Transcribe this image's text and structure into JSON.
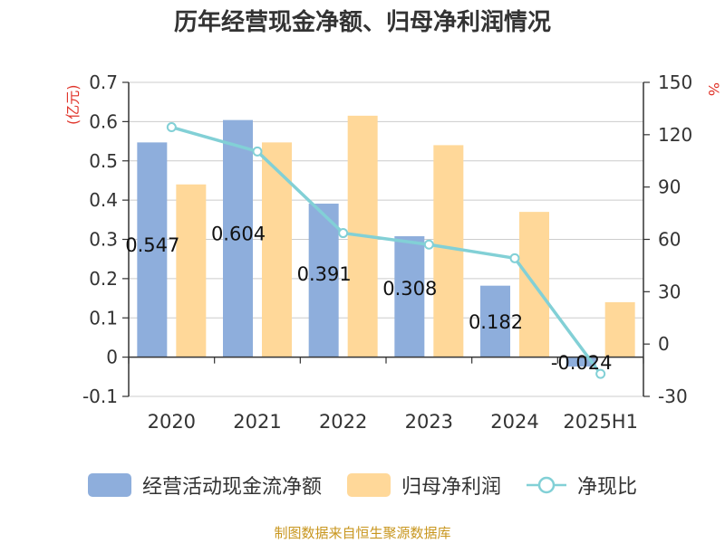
{
  "title": "历年经营现金净额、归母净利润情况",
  "source_note": "制图数据来自恒生聚源数据库",
  "colors": {
    "cash_flow": "#8eaedc",
    "net_profit": "#ffd899",
    "ratio": "#82d0d6",
    "unit_red": "#e0352b",
    "text": "#333333",
    "grid": "#cccccc",
    "source": "#c8961e"
  },
  "chart_data": {
    "type": "bar",
    "title": "历年经营现金净额、归母净利润情况",
    "categories": [
      "2020",
      "2021",
      "2022",
      "2023",
      "2024",
      "2025H1"
    ],
    "y_left": {
      "unit": "(亿元)",
      "min": -0.1,
      "max": 0.7,
      "ticks": [
        "0.7",
        "0.6",
        "0.5",
        "0.4",
        "0.3",
        "0.2",
        "0.1",
        "0",
        "-0.1"
      ]
    },
    "y_right": {
      "unit": "%",
      "min": -30,
      "max": 150,
      "ticks": [
        "150",
        "120",
        "90",
        "60",
        "30",
        "0",
        "-30"
      ]
    },
    "grid": true,
    "legend_position": "bottom",
    "series": [
      {
        "name": "经营活动现金流净额",
        "type": "bar",
        "axis": "left",
        "values": [
          0.547,
          0.604,
          0.391,
          0.308,
          0.182,
          -0.024
        ],
        "labels": [
          "0.547",
          "0.604",
          "0.391",
          "0.308",
          "0.182",
          "-0.024"
        ]
      },
      {
        "name": "归母净利润",
        "type": "bar",
        "axis": "left",
        "values": [
          0.44,
          0.547,
          0.615,
          0.54,
          0.37,
          0.14
        ]
      },
      {
        "name": "净现比",
        "type": "line",
        "axis": "right",
        "values": [
          124.3,
          110.4,
          63.6,
          57.0,
          49.2,
          -17.1
        ]
      }
    ]
  }
}
